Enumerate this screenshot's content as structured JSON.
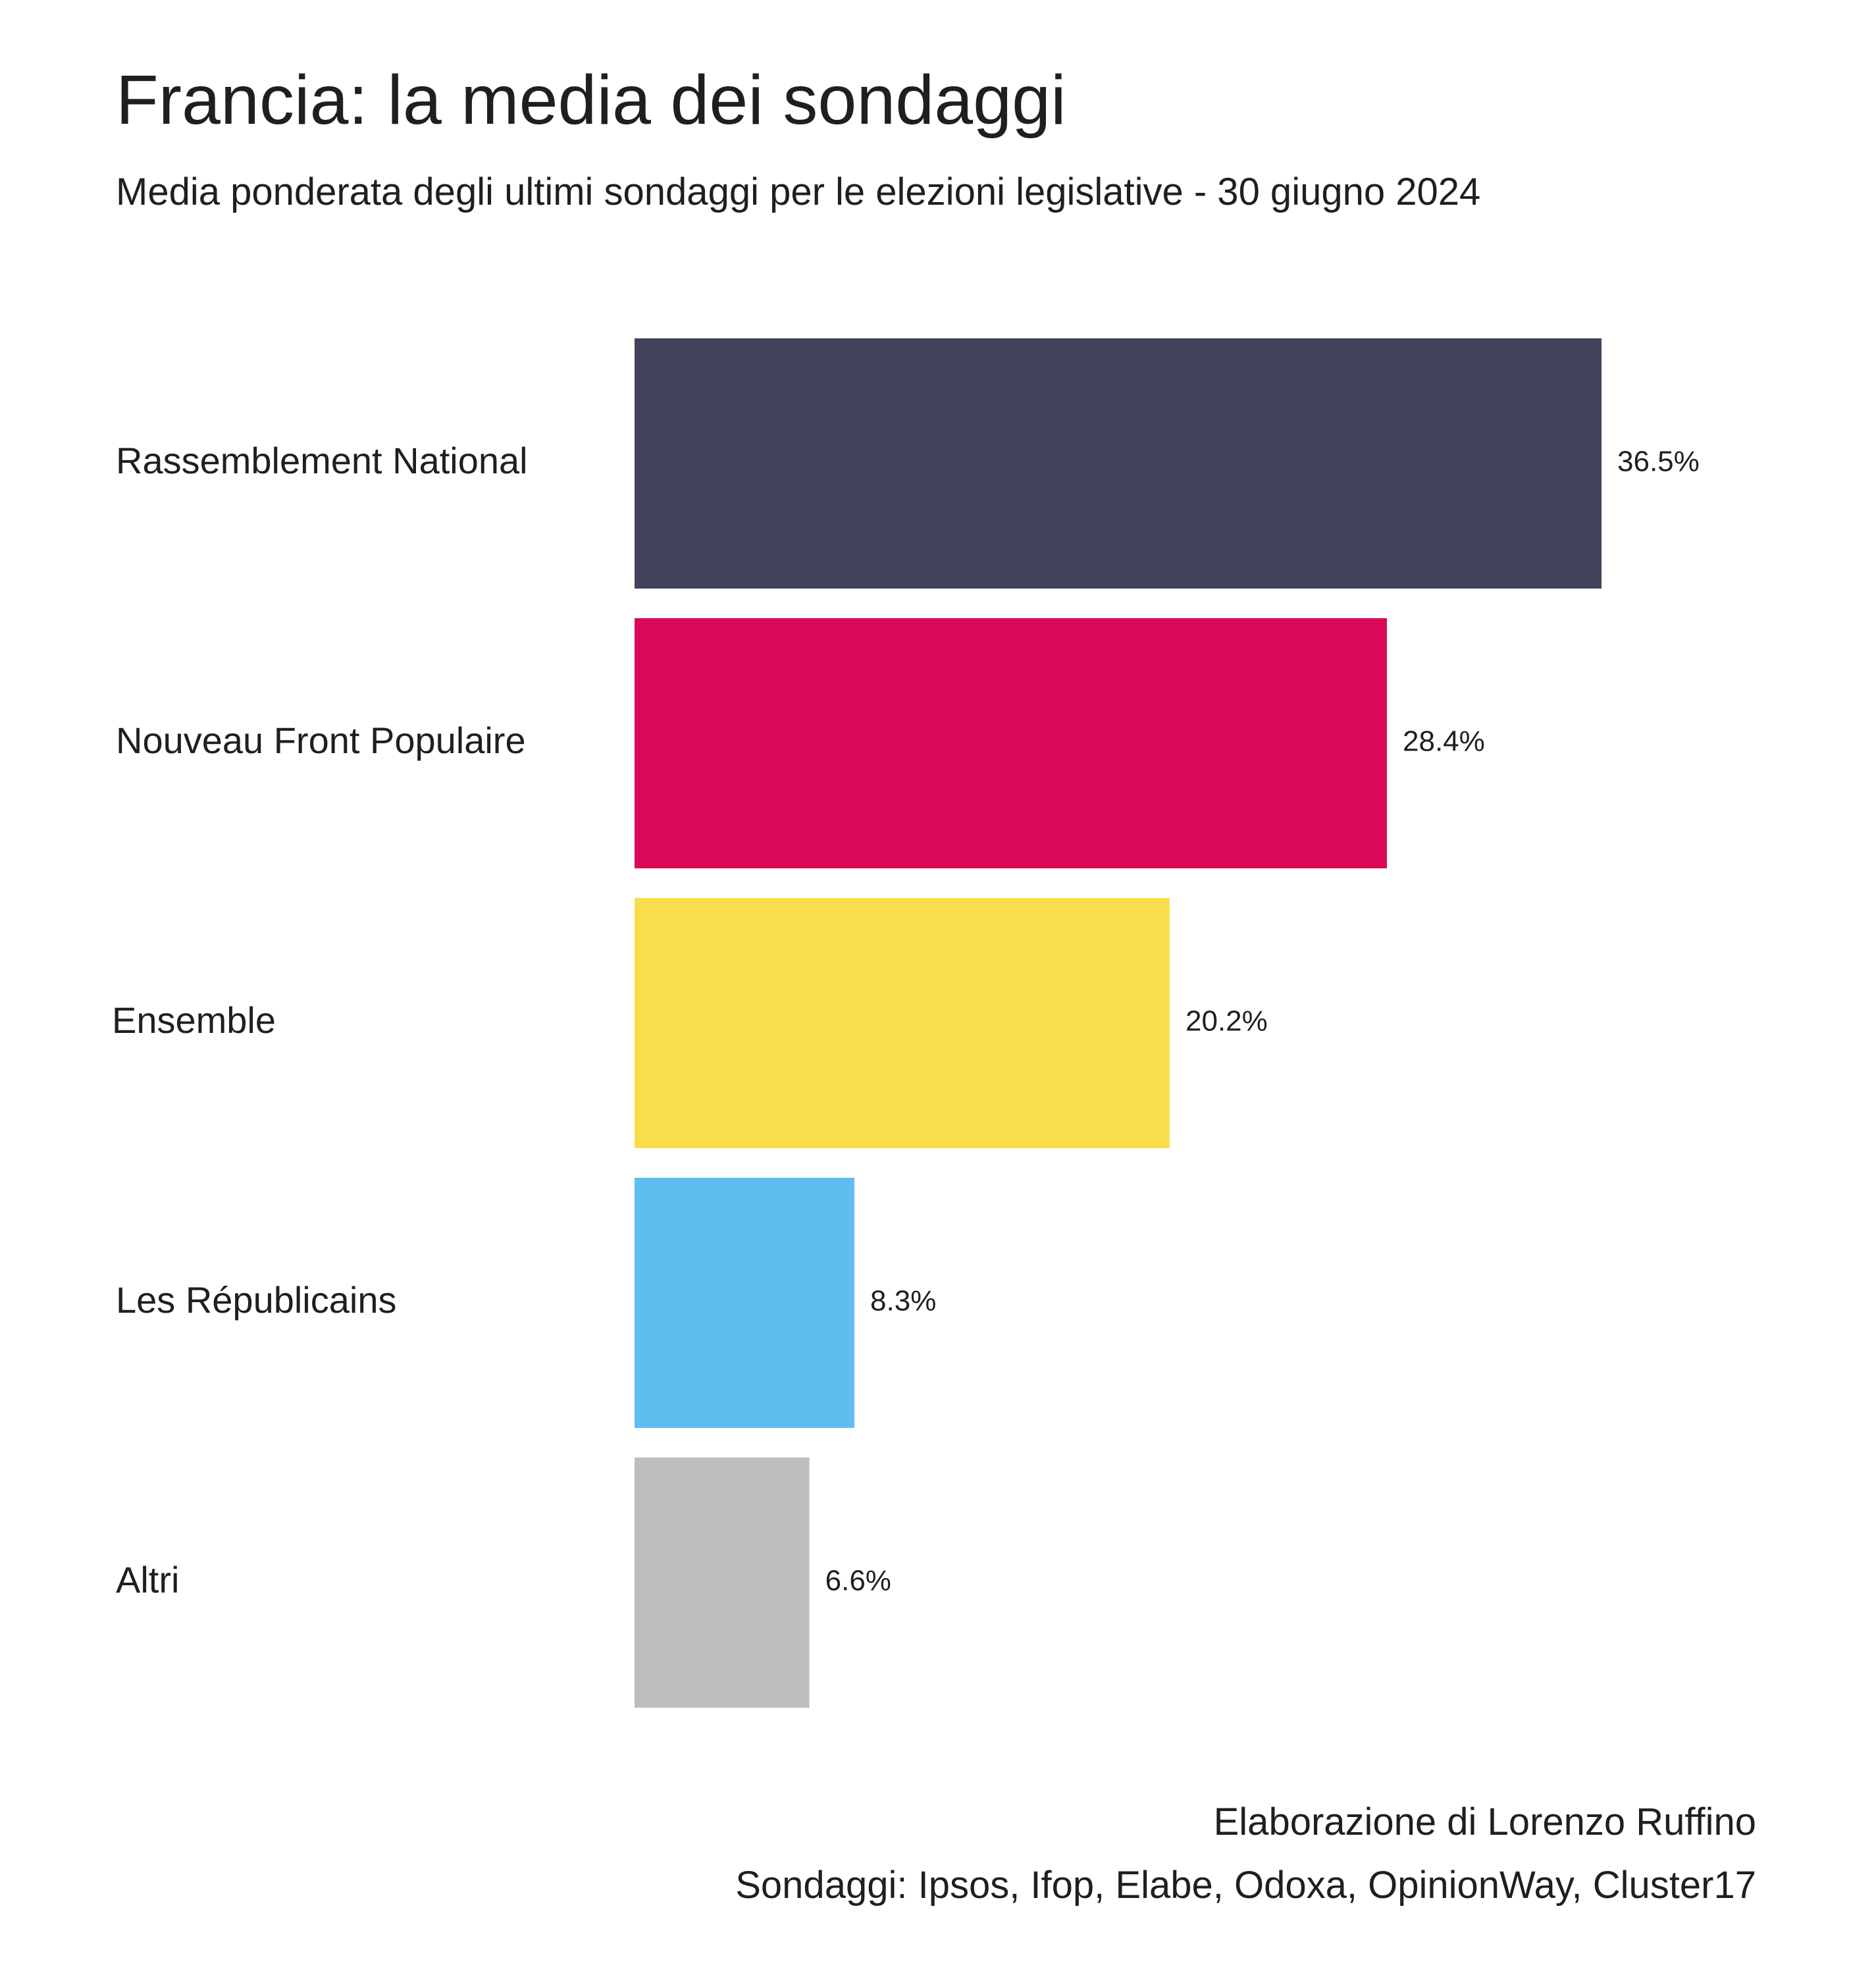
{
  "header": {
    "title": "Francia: la media dei sondaggi",
    "subtitle": "Media ponderata degli ultimi sondaggi per le elezioni legislative - 30 giugno 2024"
  },
  "chart_data": {
    "type": "bar",
    "orientation": "horizontal",
    "title": "Francia: la media dei sondaggi",
    "subtitle": "Media ponderata degli ultimi sondaggi per le elezioni legislative - 30 giugno 2024",
    "categories": [
      "Rassemblement National",
      "Nouveau Front Populaire",
      "Ensemble",
      "Les Républicains",
      "Altri"
    ],
    "values": [
      36.5,
      28.4,
      20.2,
      8.3,
      6.6
    ],
    "value_labels": [
      "36.5%",
      "28.4%",
      "20.2%",
      "8.3%",
      "6.6%"
    ],
    "colors": [
      "#41425b",
      "#d90957",
      "#fadd4a",
      "#5fbef0",
      "#bdbdbd"
    ],
    "xlabel": "",
    "ylabel": "",
    "xlim": [
      0,
      36.5
    ],
    "grid": false,
    "legend": "none"
  },
  "footer": {
    "author": "Elaborazione di Lorenzo Ruffino",
    "sources": "Sondaggi: Ipsos, Ifop, Elabe, Odoxa, OpinionWay, Cluster17"
  }
}
